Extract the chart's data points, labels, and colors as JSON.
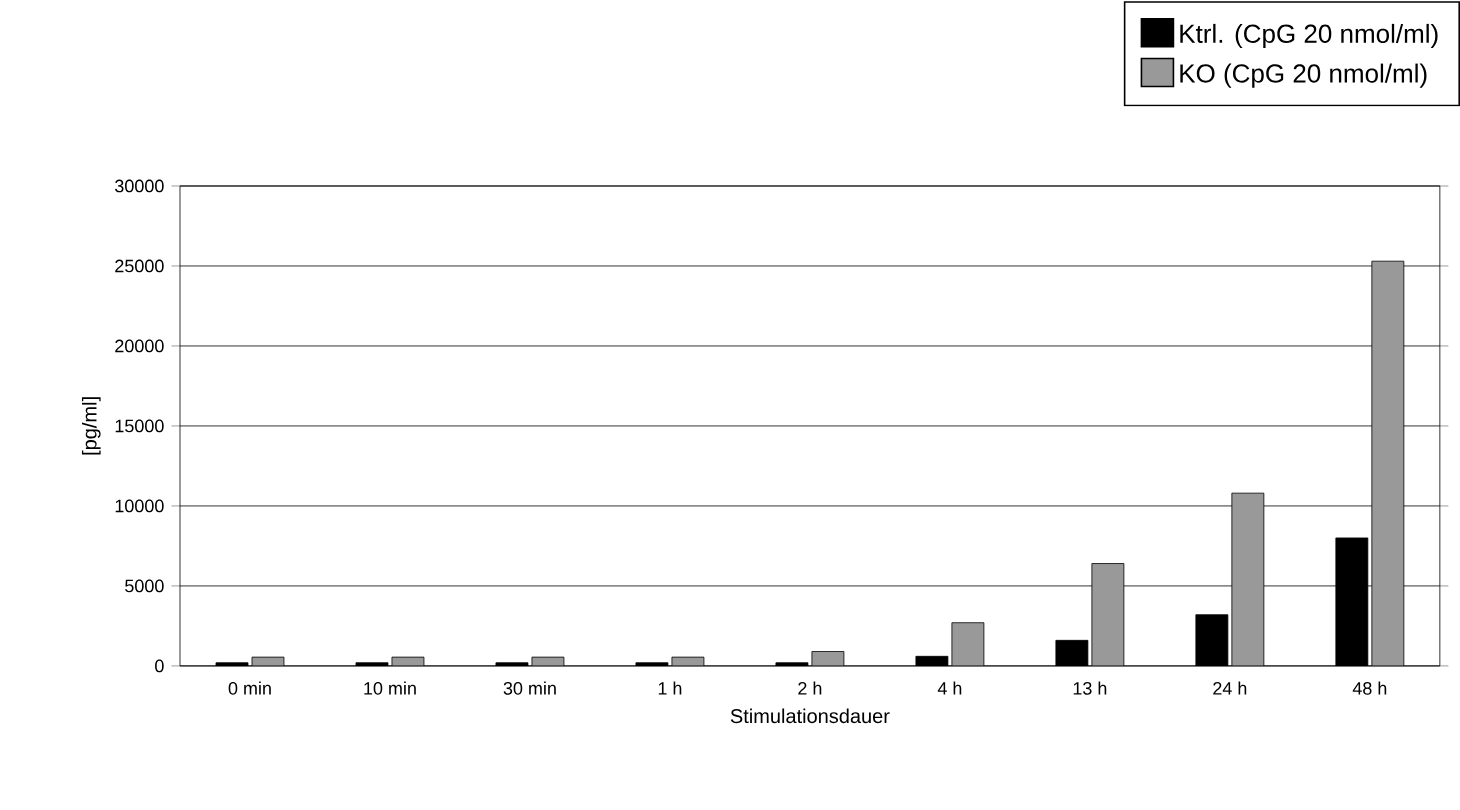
{
  "chart_data": {
    "type": "bar",
    "xlabel": "Stimulationsdauer",
    "ylabel": "[pg/ml]",
    "categories": [
      "0 min",
      "10 min",
      "30 min",
      "1 h",
      "2 h",
      "4 h",
      "13 h",
      "24 h",
      "48 h"
    ],
    "series": [
      {
        "name": "Ktrl. (CpG 20 nmol/ml)",
        "color": "#000000",
        "values": [
          200,
          200,
          200,
          200,
          200,
          600,
          1600,
          3200,
          8000
        ]
      },
      {
        "name": "KO  (CpG 20 nmol/ml)",
        "color": "#999999",
        "values": [
          550,
          550,
          550,
          550,
          900,
          2700,
          6400,
          10800,
          25300
        ]
      }
    ],
    "ylim": [
      0,
      30000
    ],
    "yticks": [
      0,
      5000,
      10000,
      15000,
      20000,
      25000,
      30000
    ],
    "grid": "y",
    "legend": "top right"
  }
}
